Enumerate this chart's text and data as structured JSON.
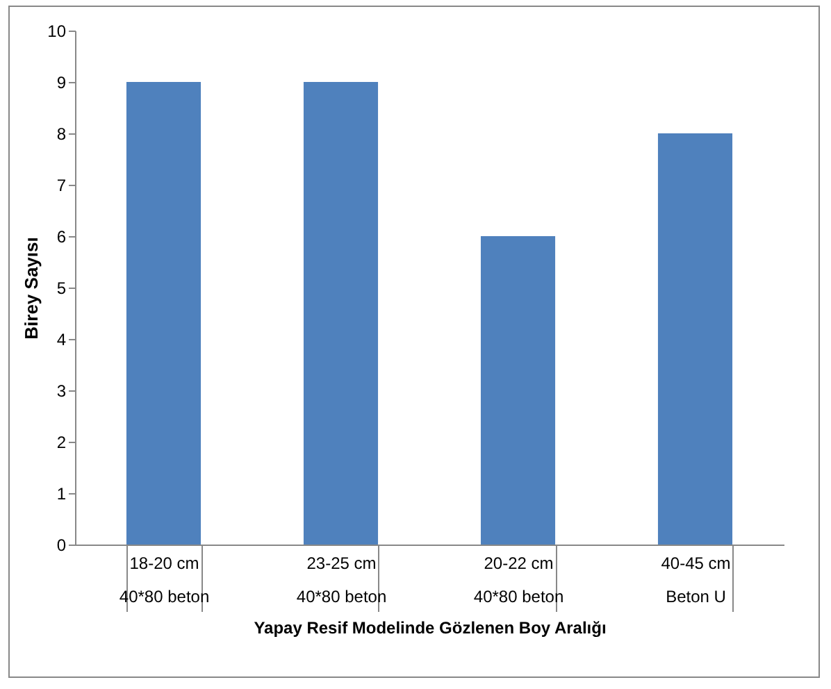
{
  "chart_data": {
    "type": "bar",
    "xlabel": "Yapay Resif Modelinde Gözlenen Boy Aralığı",
    "ylabel": "Birey Sayısı",
    "categories": [
      "18-20 cm\n40*80 beton",
      "23-25 cm\n40*80 beton",
      "20-22 cm\n40*80 beton",
      "40-45 cm\nBeton U"
    ],
    "values": [
      9,
      9,
      6,
      8
    ],
    "color": "#4f81bd",
    "ylim": [
      0,
      10
    ],
    "yticks": [
      0,
      1,
      2,
      3,
      4,
      5,
      6,
      7,
      8,
      9,
      10
    ],
    "grid": false
  }
}
